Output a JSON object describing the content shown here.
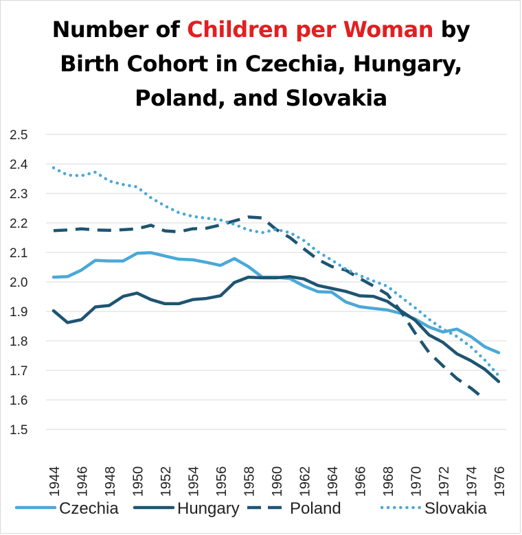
{
  "title": {
    "before": "Number of ",
    "highlight": "Children per Woman",
    "after": " by",
    "line2": "Birth Cohort in Czechia, Hungary,",
    "line3": "Poland, and Slovakia"
  },
  "colors": {
    "highlight": "#e02020",
    "grid": "#d9d9d9",
    "Czechia": "#4aa8d8",
    "Hungary": "#1e5472",
    "Poland": "#1e5472",
    "Slovakia": "#4aa8d8"
  },
  "chart_data": {
    "type": "line",
    "ylim": [
      1.5,
      2.5
    ],
    "yticks": [
      "1.5",
      "1.6",
      "1.7",
      "1.8",
      "1.9",
      "2.0",
      "2.1",
      "2.2",
      "2.3",
      "2.4",
      "2.5"
    ],
    "xlabels": [
      "1944",
      "1946",
      "1948",
      "1950",
      "1952",
      "1954",
      "1956",
      "1958",
      "1960",
      "1962",
      "1964",
      "1966",
      "1968",
      "1970",
      "1972",
      "1974",
      "1976"
    ],
    "x": [
      1944,
      1945,
      1946,
      1947,
      1948,
      1949,
      1950,
      1951,
      1952,
      1953,
      1954,
      1955,
      1956,
      1957,
      1958,
      1959,
      1960,
      1961,
      1962,
      1963,
      1964,
      1965,
      1966,
      1967,
      1968,
      1969,
      1970,
      1971,
      1972,
      1973,
      1974,
      1975,
      1976
    ],
    "grid": true,
    "legend_position": "bottom",
    "series": [
      {
        "name": "Czechia",
        "style": "solid",
        "values": [
          2.016,
          2.018,
          2.04,
          2.073,
          2.071,
          2.071,
          2.097,
          2.099,
          2.088,
          2.077,
          2.075,
          2.066,
          2.056,
          2.079,
          2.052,
          2.016,
          2.016,
          2.011,
          1.986,
          1.967,
          1.965,
          1.932,
          1.916,
          1.91,
          1.905,
          1.893,
          1.874,
          1.847,
          1.83,
          1.84,
          1.815,
          1.78,
          1.76
        ]
      },
      {
        "name": "Hungary",
        "style": "solid",
        "values": [
          1.902,
          1.862,
          1.872,
          1.915,
          1.92,
          1.951,
          1.962,
          1.94,
          1.926,
          1.926,
          1.94,
          1.944,
          1.953,
          1.998,
          2.016,
          2.014,
          2.014,
          2.018,
          2.01,
          1.988,
          1.978,
          1.968,
          1.953,
          1.951,
          1.934,
          1.901,
          1.87,
          1.82,
          1.795,
          1.756,
          1.733,
          1.704,
          1.662
        ]
      },
      {
        "name": "Poland",
        "style": "dashed",
        "values": [
          2.174,
          2.176,
          2.18,
          2.176,
          2.175,
          2.177,
          2.18,
          2.192,
          2.173,
          2.17,
          2.18,
          2.182,
          2.193,
          2.207,
          2.22,
          2.217,
          2.178,
          2.15,
          2.112,
          2.076,
          2.052,
          2.04,
          2.012,
          1.986,
          1.958,
          1.898,
          1.826,
          1.76,
          1.715,
          1.672,
          1.64,
          1.602,
          null
        ]
      },
      {
        "name": "Slovakia",
        "style": "dotted",
        "values": [
          2.387,
          2.362,
          2.36,
          2.372,
          2.342,
          2.33,
          2.322,
          2.285,
          2.258,
          2.235,
          2.222,
          2.216,
          2.21,
          2.195,
          2.176,
          2.167,
          2.178,
          2.167,
          2.14,
          2.102,
          2.074,
          2.044,
          2.022,
          2.003,
          1.985,
          1.948,
          1.912,
          1.873,
          1.84,
          1.815,
          1.78,
          1.735,
          1.682
        ]
      }
    ]
  }
}
